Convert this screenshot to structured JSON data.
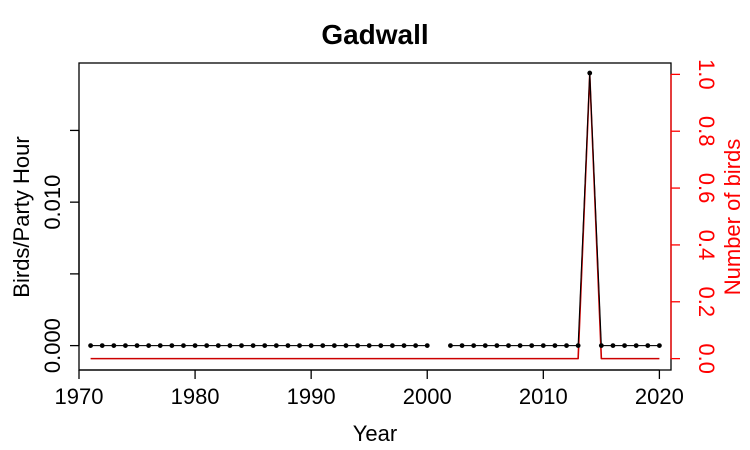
{
  "chart_data": {
    "type": "line",
    "title": "Gadwall",
    "xlabel": "Year",
    "ylabel_left": "Birds/Party Hour",
    "ylabel_right": "Number of birds",
    "xlim": [
      1970,
      2021
    ],
    "ylim_left": [
      -0.0017,
      0.0197
    ],
    "ylim_right": [
      -0.04,
      1.04
    ],
    "x_ticks": [
      1970,
      1980,
      1990,
      2000,
      2010,
      2020
    ],
    "y_ticks_left": [
      0.0,
      0.005,
      0.01,
      0.015
    ],
    "y_tick_labels_left": [
      "0.000",
      "",
      "0.010",
      ""
    ],
    "y_ticks_right": [
      0.0,
      0.2,
      0.4,
      0.6,
      0.8,
      1.0
    ],
    "y_tick_labels_right": [
      "0.0",
      "0.2",
      "0.4",
      "0.6",
      "0.8",
      "1.0"
    ],
    "grid": false,
    "colors": {
      "left_series": "#000000",
      "right_series": "#cc0000",
      "right_axis": "#ff0000"
    },
    "series": [
      {
        "axis": "left",
        "x": [
          1971,
          1972,
          1973,
          1974,
          1975,
          1976,
          1977,
          1978,
          1979,
          1980,
          1981,
          1982,
          1983,
          1984,
          1985,
          1986,
          1987,
          1988,
          1989,
          1990,
          1991,
          1992,
          1993,
          1994,
          1995,
          1996,
          1997,
          1998,
          1999,
          2000,
          2002,
          2003,
          2004,
          2005,
          2006,
          2007,
          2008,
          2009,
          2010,
          2011,
          2012,
          2013,
          2014,
          2015,
          2016,
          2017,
          2018,
          2019,
          2020
        ],
        "values": [
          0,
          0,
          0,
          0,
          0,
          0,
          0,
          0,
          0,
          0,
          0,
          0,
          0,
          0,
          0,
          0,
          0,
          0,
          0,
          0,
          0,
          0,
          0,
          0,
          0,
          0,
          0,
          0,
          0,
          0,
          0,
          0,
          0,
          0,
          0,
          0,
          0,
          0,
          0,
          0,
          0,
          0,
          0.019,
          0,
          0,
          0,
          0,
          0,
          0
        ]
      },
      {
        "axis": "right",
        "x": [
          1971,
          1972,
          1973,
          1974,
          1975,
          1976,
          1977,
          1978,
          1979,
          1980,
          1981,
          1982,
          1983,
          1984,
          1985,
          1986,
          1987,
          1988,
          1989,
          1990,
          1991,
          1992,
          1993,
          1994,
          1995,
          1996,
          1997,
          1998,
          1999,
          2000,
          2002,
          2003,
          2004,
          2005,
          2006,
          2007,
          2008,
          2009,
          2010,
          2011,
          2012,
          2013,
          2014,
          2015,
          2016,
          2017,
          2018,
          2019,
          2020
        ],
        "values": [
          0,
          0,
          0,
          0,
          0,
          0,
          0,
          0,
          0,
          0,
          0,
          0,
          0,
          0,
          0,
          0,
          0,
          0,
          0,
          0,
          0,
          0,
          0,
          0,
          0,
          0,
          0,
          0,
          0,
          0,
          0,
          0,
          0,
          0,
          0,
          0,
          0,
          0,
          0,
          0,
          0,
          0,
          1,
          0,
          0,
          0,
          0,
          0,
          0
        ]
      }
    ]
  }
}
